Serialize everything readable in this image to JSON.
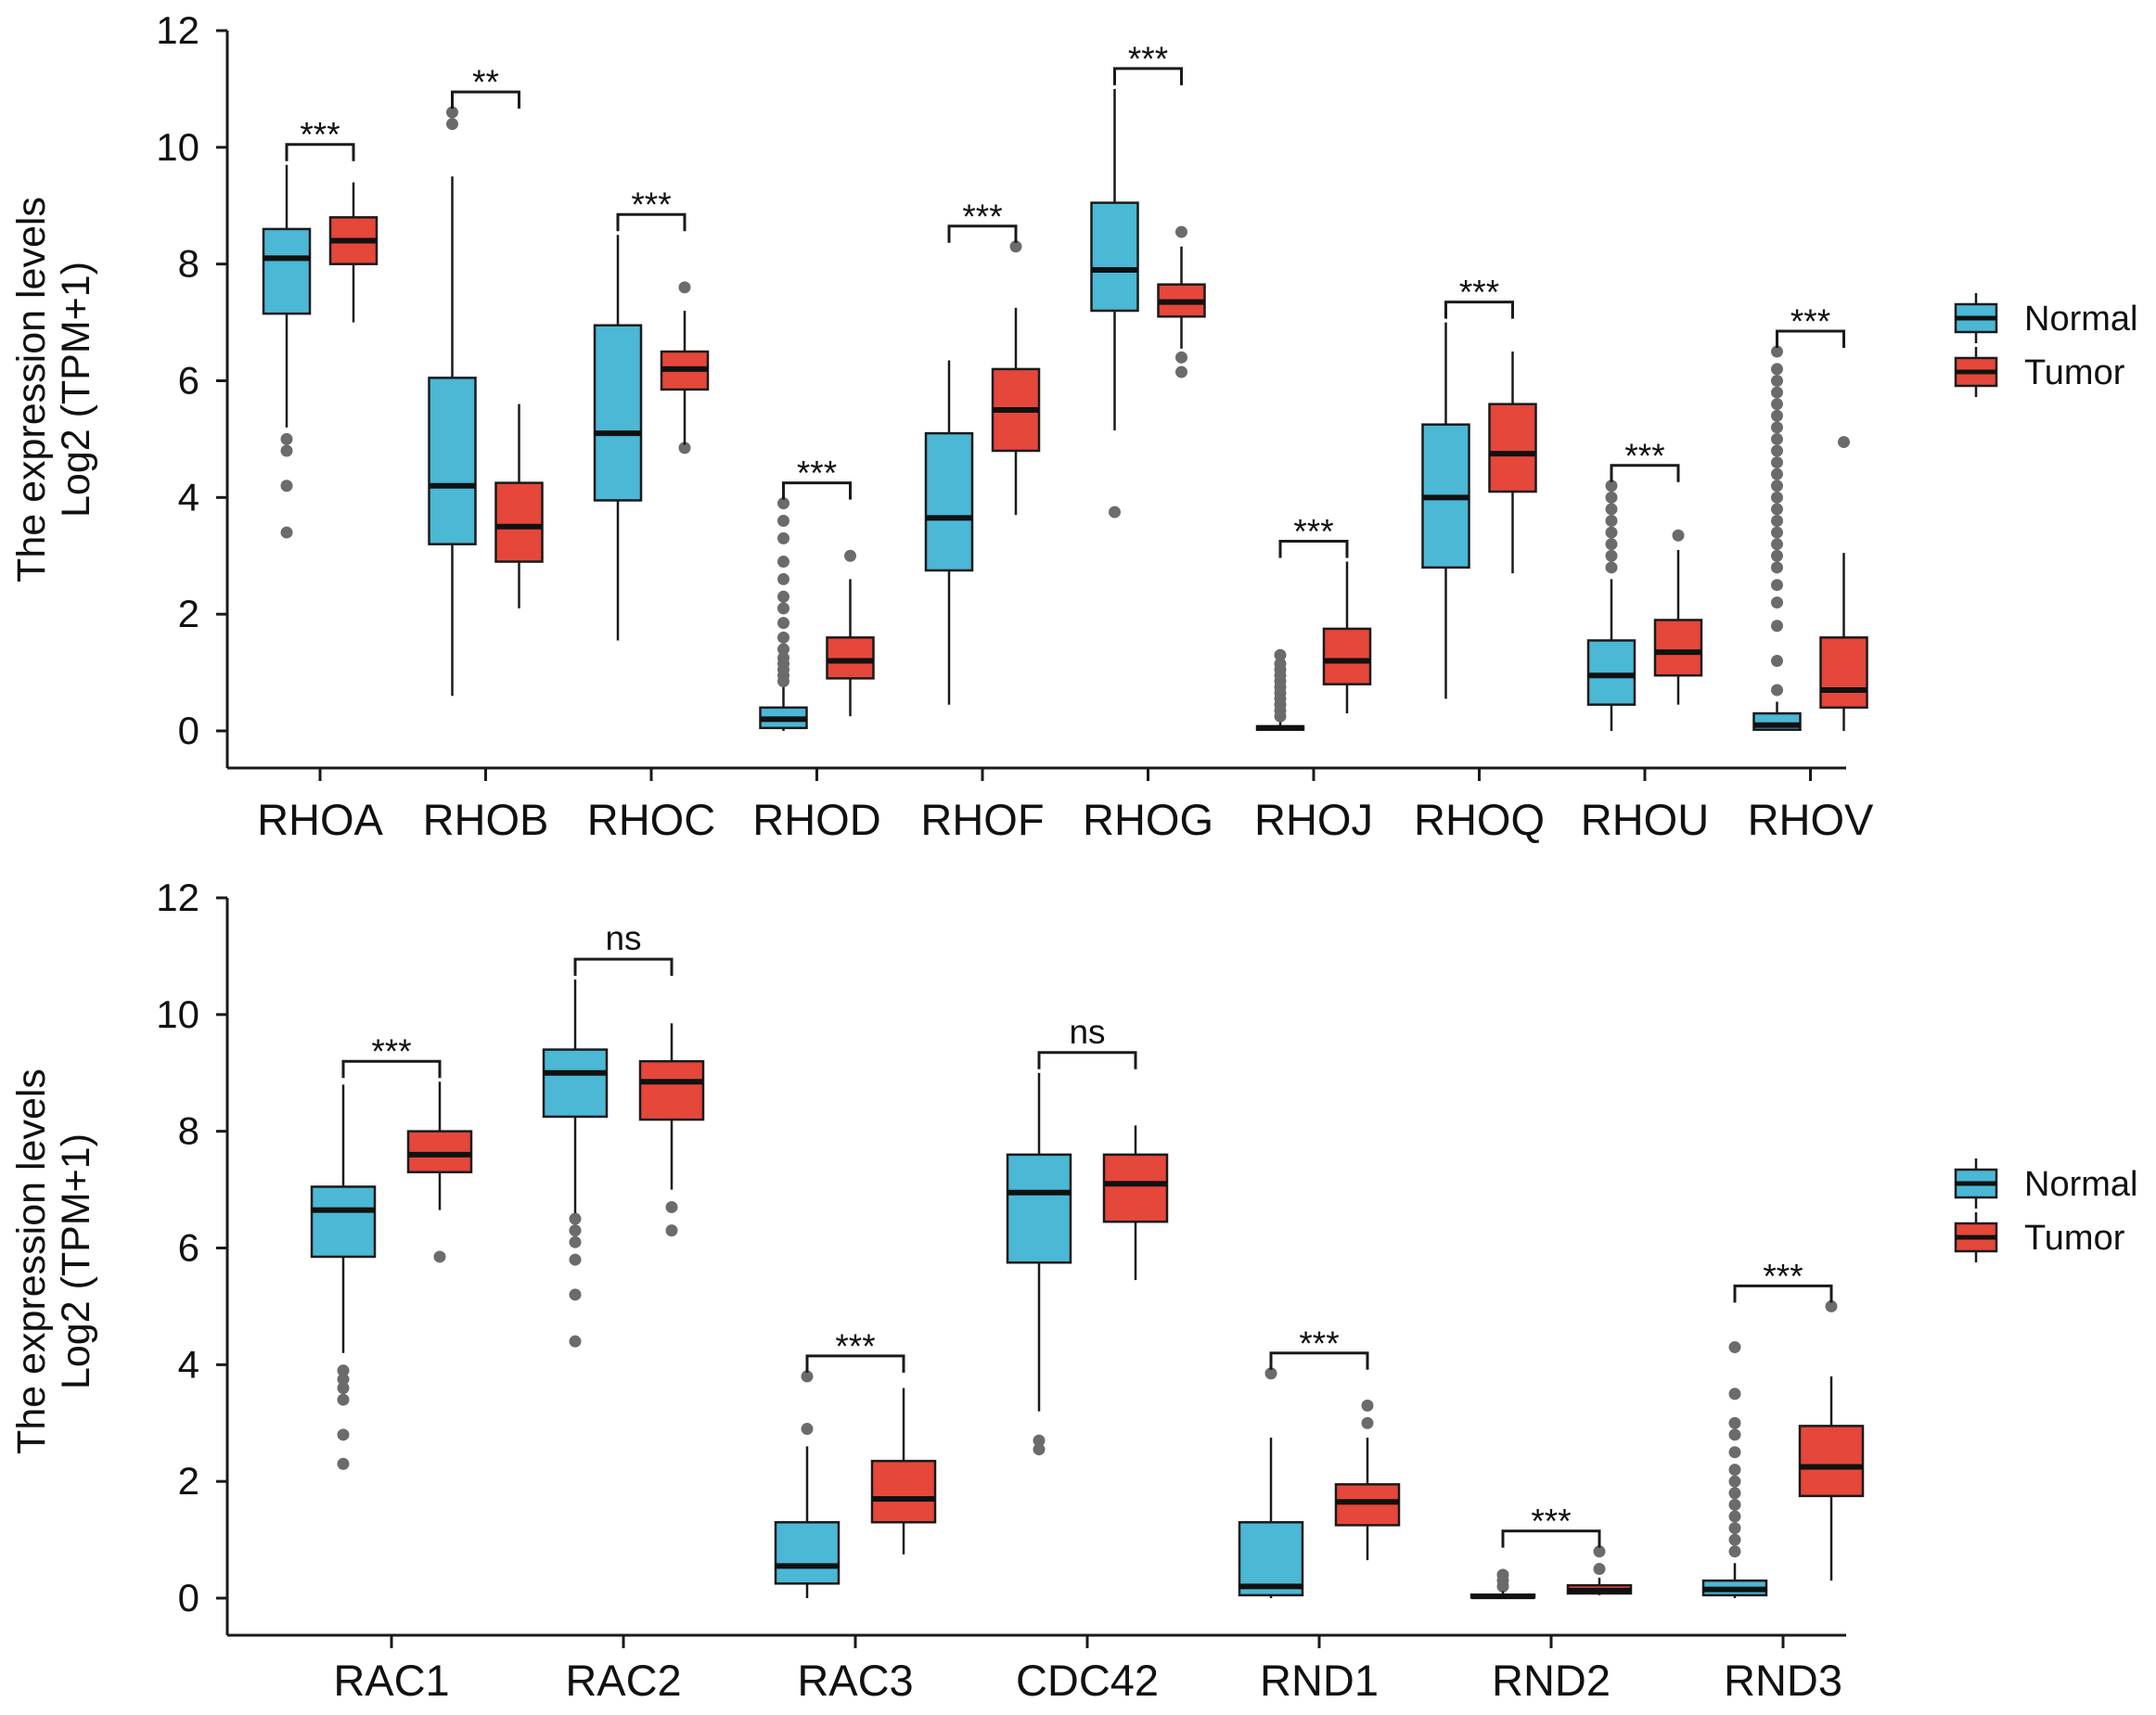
{
  "colors": {
    "normal": "#4BB8D5",
    "tumor": "#E5473A",
    "outlier": "#6b6b6b",
    "line": "#1a1a1a"
  },
  "chart_data": [
    {
      "type": "box",
      "ylabel": [
        "The expression levels",
        "Log2 (TPM+1)"
      ],
      "ylim": [
        0,
        12
      ],
      "yticks": [
        "0",
        "2",
        "4",
        "6",
        "8",
        "10",
        "12"
      ],
      "legend": {
        "entries": [
          "Normal",
          "Tumor"
        ],
        "placement": "right"
      },
      "genes": [
        {
          "name": "RHOA",
          "sig": "***",
          "normal": {
            "min": 5.2,
            "q1": 7.15,
            "median": 8.1,
            "q3": 8.6,
            "max": 9.7,
            "outliers": [
              3.4,
              4.2,
              4.8,
              5.0
            ]
          },
          "tumor": {
            "min": 7.0,
            "q1": 8.0,
            "median": 8.4,
            "q3": 8.8,
            "max": 9.4,
            "outliers": []
          }
        },
        {
          "name": "RHOB",
          "sig": "**",
          "normal": {
            "min": 0.6,
            "q1": 3.2,
            "median": 4.2,
            "q3": 6.05,
            "max": 9.5,
            "outliers": [
              10.4,
              10.6
            ]
          },
          "tumor": {
            "min": 2.1,
            "q1": 2.9,
            "median": 3.5,
            "q3": 4.25,
            "max": 5.6,
            "outliers": []
          }
        },
        {
          "name": "RHOC",
          "sig": "***",
          "normal": {
            "min": 1.55,
            "q1": 3.95,
            "median": 5.1,
            "q3": 6.95,
            "max": 8.5,
            "outliers": []
          },
          "tumor": {
            "min": 4.9,
            "q1": 5.85,
            "median": 6.2,
            "q3": 6.5,
            "max": 7.2,
            "outliers": [
              7.6,
              4.85
            ]
          }
        },
        {
          "name": "RHOD",
          "sig": "***",
          "normal": {
            "min": 0.0,
            "q1": 0.05,
            "median": 0.2,
            "q3": 0.4,
            "max": 0.75,
            "outliers": [
              0.85,
              0.95,
              1.05,
              1.15,
              1.25,
              1.4,
              1.6,
              1.85,
              2.1,
              2.3,
              2.6,
              2.9,
              3.3,
              3.6,
              3.9
            ]
          },
          "tumor": {
            "min": 0.25,
            "q1": 0.9,
            "median": 1.2,
            "q3": 1.6,
            "max": 2.6,
            "outliers": [
              3.0
            ]
          }
        },
        {
          "name": "RHOF",
          "sig": "***",
          "normal": {
            "min": 0.45,
            "q1": 2.75,
            "median": 3.65,
            "q3": 5.1,
            "max": 6.35,
            "outliers": []
          },
          "tumor": {
            "min": 3.7,
            "q1": 4.8,
            "median": 5.5,
            "q3": 6.2,
            "max": 7.25,
            "outliers": [
              8.3
            ]
          }
        },
        {
          "name": "RHOG",
          "sig": "***",
          "normal": {
            "min": 5.15,
            "q1": 7.2,
            "median": 7.9,
            "q3": 9.05,
            "max": 11.0,
            "outliers": [
              3.75
            ]
          },
          "tumor": {
            "min": 6.55,
            "q1": 7.1,
            "median": 7.35,
            "q3": 7.65,
            "max": 8.3,
            "outliers": [
              8.55,
              6.4,
              6.15
            ]
          }
        },
        {
          "name": "RHOJ",
          "sig": "***",
          "normal": {
            "min": 0.0,
            "q1": 0.02,
            "median": 0.05,
            "q3": 0.08,
            "max": 0.15,
            "outliers": [
              0.25,
              0.35,
              0.45,
              0.55,
              0.65,
              0.75,
              0.85,
              0.95,
              1.05,
              1.15,
              1.3
            ]
          },
          "tumor": {
            "min": 0.3,
            "q1": 0.8,
            "median": 1.2,
            "q3": 1.75,
            "max": 2.9,
            "outliers": []
          }
        },
        {
          "name": "RHOQ",
          "sig": "***",
          "normal": {
            "min": 0.55,
            "q1": 2.8,
            "median": 4.0,
            "q3": 5.25,
            "max": 7.0,
            "outliers": []
          },
          "tumor": {
            "min": 2.7,
            "q1": 4.1,
            "median": 4.75,
            "q3": 5.6,
            "max": 6.5,
            "outliers": []
          }
        },
        {
          "name": "RHOU",
          "sig": "***",
          "normal": {
            "min": 0.0,
            "q1": 0.45,
            "median": 0.95,
            "q3": 1.55,
            "max": 2.6,
            "outliers": [
              2.8,
              3.0,
              3.2,
              3.4,
              3.6,
              3.8,
              4.0,
              4.2
            ]
          },
          "tumor": {
            "min": 0.45,
            "q1": 0.95,
            "median": 1.35,
            "q3": 1.9,
            "max": 3.1,
            "outliers": [
              3.35
            ]
          }
        },
        {
          "name": "RHOV",
          "sig": "***",
          "normal": {
            "min": 0.0,
            "q1": 0.02,
            "median": 0.1,
            "q3": 0.3,
            "max": 0.5,
            "outliers": [
              0.7,
              1.2,
              1.8,
              2.2,
              2.5,
              2.8,
              3.0,
              3.2,
              3.4,
              3.6,
              3.8,
              4.0,
              4.2,
              4.4,
              4.6,
              4.8,
              5.0,
              5.2,
              5.4,
              5.6,
              5.8,
              6.0,
              6.2,
              6.5
            ]
          },
          "tumor": {
            "min": 0.0,
            "q1": 0.4,
            "median": 0.7,
            "q3": 1.6,
            "max": 3.05,
            "outliers": [
              4.95
            ]
          }
        }
      ]
    },
    {
      "type": "box",
      "ylabel": [
        "The expression levels",
        "Log2 (TPM+1)"
      ],
      "ylim": [
        0,
        12
      ],
      "yticks": [
        "0",
        "2",
        "4",
        "6",
        "8",
        "10",
        "12"
      ],
      "legend": {
        "entries": [
          "Normal",
          "Tumor"
        ],
        "placement": "right"
      },
      "genes": [
        {
          "name": "RAC1",
          "sig": "***",
          "normal": {
            "min": 4.2,
            "q1": 5.85,
            "median": 6.65,
            "q3": 7.05,
            "max": 8.8,
            "outliers": [
              2.3,
              2.8,
              3.4,
              3.6,
              3.75,
              3.9
            ]
          },
          "tumor": {
            "min": 6.65,
            "q1": 7.3,
            "median": 7.6,
            "q3": 8.0,
            "max": 8.85,
            "outliers": [
              5.85
            ]
          }
        },
        {
          "name": "RAC2",
          "sig": "ns",
          "normal": {
            "min": 6.6,
            "q1": 8.25,
            "median": 9.0,
            "q3": 9.4,
            "max": 10.6,
            "outliers": [
              4.4,
              5.2,
              5.8,
              6.1,
              6.3,
              6.5
            ]
          },
          "tumor": {
            "min": 7.0,
            "q1": 8.2,
            "median": 8.85,
            "q3": 9.2,
            "max": 9.85,
            "outliers": [
              6.7,
              6.3
            ]
          }
        },
        {
          "name": "RAC3",
          "sig": "***",
          "normal": {
            "min": 0.0,
            "q1": 0.25,
            "median": 0.55,
            "q3": 1.3,
            "max": 2.6,
            "outliers": [
              2.9,
              3.8
            ]
          },
          "tumor": {
            "min": 0.75,
            "q1": 1.3,
            "median": 1.7,
            "q3": 2.35,
            "max": 3.6,
            "outliers": []
          }
        },
        {
          "name": "CDC42",
          "sig": "ns",
          "normal": {
            "min": 3.2,
            "q1": 5.75,
            "median": 6.95,
            "q3": 7.6,
            "max": 9.0,
            "outliers": [
              2.55,
              2.7
            ]
          },
          "tumor": {
            "min": 5.45,
            "q1": 6.45,
            "median": 7.1,
            "q3": 7.6,
            "max": 8.1,
            "outliers": []
          }
        },
        {
          "name": "RND1",
          "sig": "***",
          "normal": {
            "min": 0.0,
            "q1": 0.05,
            "median": 0.2,
            "q3": 1.3,
            "max": 2.75,
            "outliers": [
              3.85
            ]
          },
          "tumor": {
            "min": 0.65,
            "q1": 1.25,
            "median": 1.65,
            "q3": 1.95,
            "max": 2.75,
            "outliers": [
              3.3,
              3.0
            ]
          }
        },
        {
          "name": "RND2",
          "sig": "***",
          "normal": {
            "min": 0.0,
            "q1": 0.01,
            "median": 0.03,
            "q3": 0.06,
            "max": 0.12,
            "outliers": [
              0.2,
              0.3,
              0.4
            ]
          },
          "tumor": {
            "min": 0.05,
            "q1": 0.08,
            "median": 0.13,
            "q3": 0.22,
            "max": 0.35,
            "outliers": [
              0.5,
              0.8
            ]
          }
        },
        {
          "name": "RND3",
          "sig": "***",
          "normal": {
            "min": 0.0,
            "q1": 0.05,
            "median": 0.15,
            "q3": 0.3,
            "max": 0.6,
            "outliers": [
              0.8,
              1.0,
              1.2,
              1.4,
              1.6,
              1.8,
              2.0,
              2.2,
              2.5,
              2.8,
              3.0,
              3.5,
              4.3
            ]
          },
          "tumor": {
            "min": 0.3,
            "q1": 1.75,
            "median": 2.25,
            "q3": 2.95,
            "max": 3.8,
            "outliers": [
              5.0
            ]
          }
        }
      ]
    }
  ]
}
